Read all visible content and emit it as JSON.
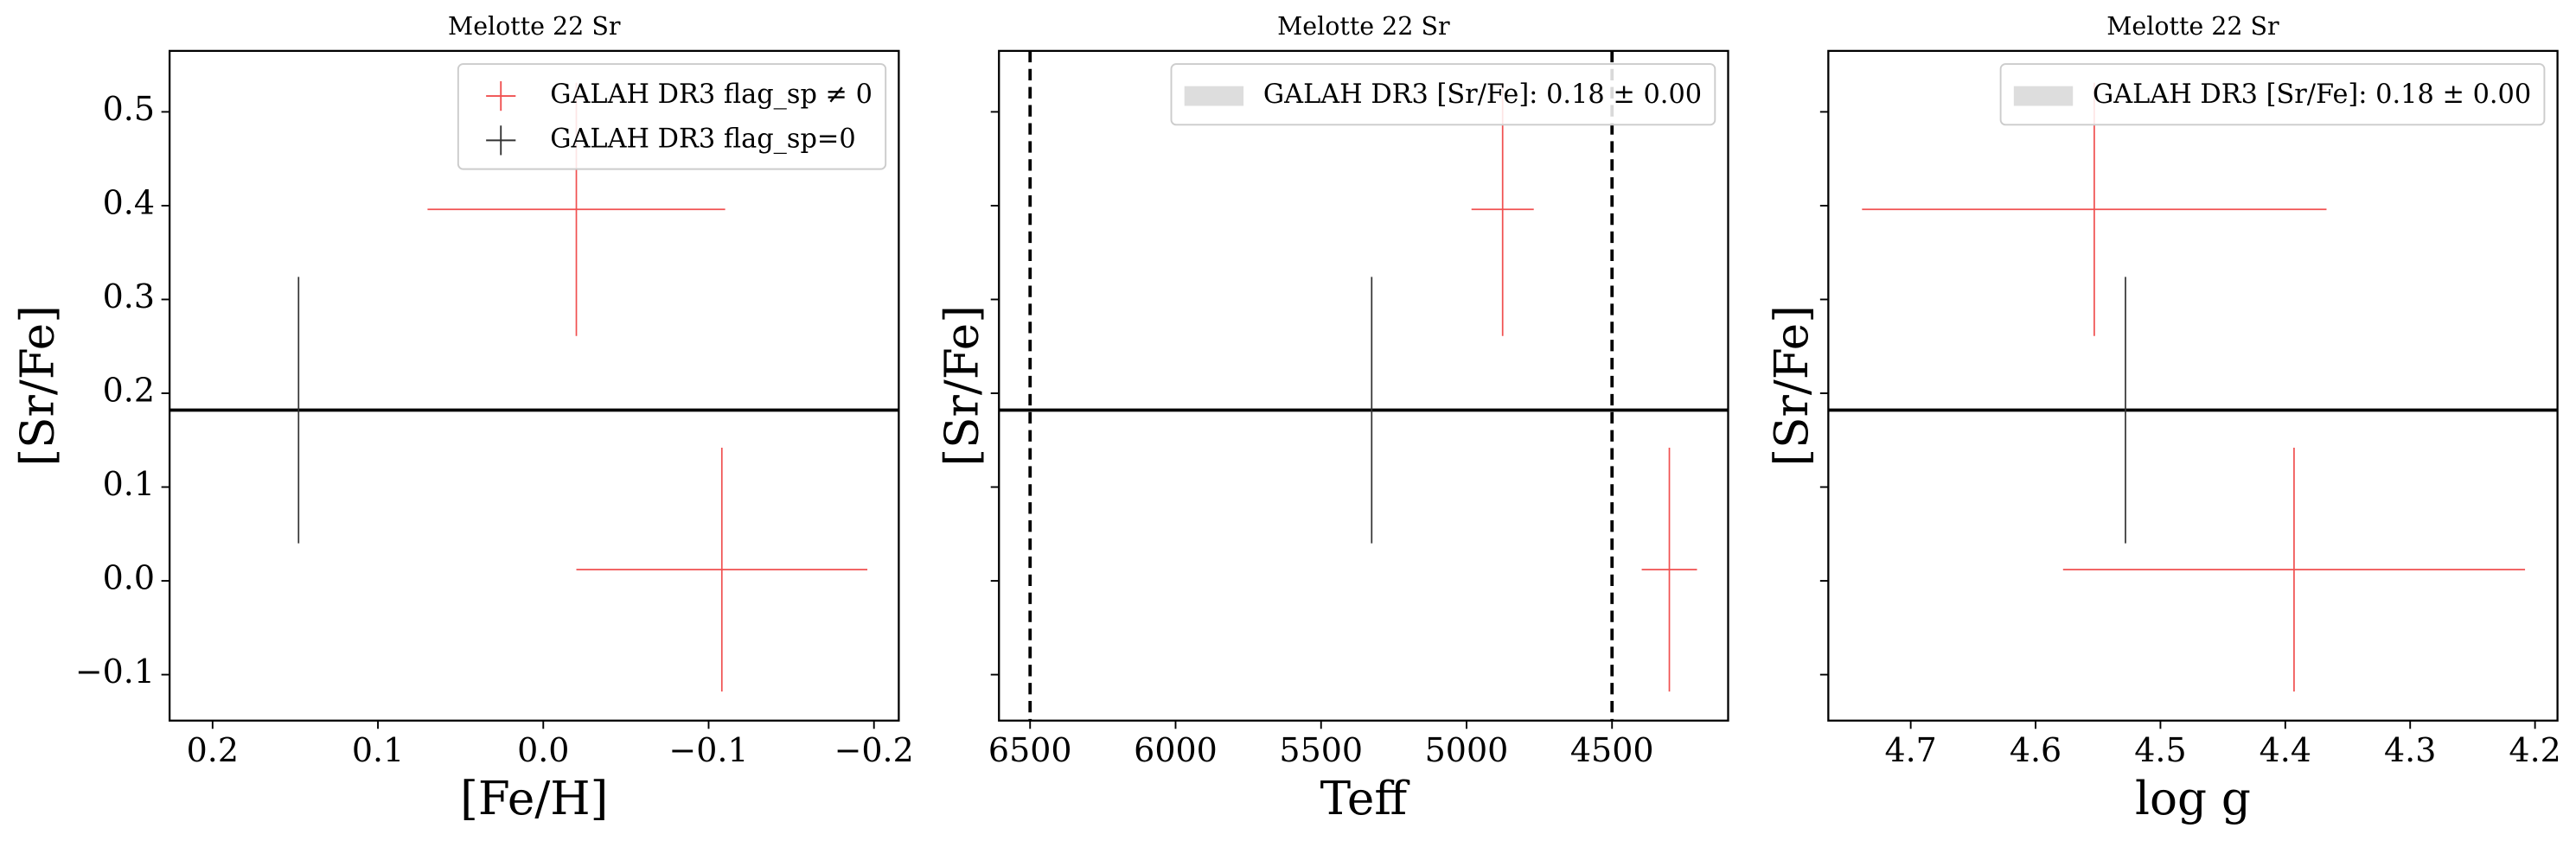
{
  "chart_data": [
    {
      "type": "errorbar",
      "title": "Melotte 22 Sr",
      "xlabel": "[Fe/H]",
      "ylabel": "[Sr/Fe]",
      "xlim": [
        0.226,
        -0.215
      ],
      "ylim": [
        -0.149,
        0.565
      ],
      "xticks": [
        0.2,
        0.1,
        {
          "value": 0,
          "label": "0.0"
        },
        {
          "value": -0.1,
          "label": "−0.1"
        },
        {
          "value": -0.2,
          "label": "−0.2"
        }
      ],
      "yticks": [
        {
          "value": -0.1,
          "label": "−0.1"
        },
        {
          "value": 0,
          "label": "0.0"
        },
        0.1,
        0.2,
        0.3,
        0.4,
        0.5
      ],
      "ytick_labels": true,
      "legend": "upper right",
      "hline": {
        "value": 0.182,
        "color": "#000000"
      },
      "series": [
        {
          "name": "GALAH DR3 flag_sp ≠ 0",
          "color": "#f05050",
          "x": [
            -0.02,
            -0.108
          ],
          "values": [
            0.396,
            0.012
          ],
          "xerr": [
            0.09,
            0.088
          ],
          "yerr": [
            0.135,
            0.13
          ]
        },
        {
          "name": "GALAH DR3 flag_sp=0",
          "color": "#333333",
          "x": [
            0.148
          ],
          "values": [
            0.182
          ],
          "yerr": [
            0.142
          ]
        }
      ]
    },
    {
      "type": "errorbar",
      "title": "Melotte 22 Sr",
      "xlabel": "Teff",
      "ylabel": "[Sr/Fe]",
      "xlim": [
        6607,
        4101
      ],
      "ylim": [
        -0.149,
        0.565
      ],
      "xticks": [
        6500,
        6000,
        5500,
        5000,
        4500
      ],
      "yticks": [
        -0.1,
        0,
        0.1,
        0.2,
        0.3,
        0.4,
        0.5
      ],
      "ytick_labels": false,
      "legend": "upper right",
      "vlines": [
        6500,
        4500
      ],
      "hline": {
        "value": 0.182,
        "color": "#000000",
        "label": "GALAH DR3 [Sr/Fe]: 0.18 ± 0.00",
        "patch_color": "#dddddd"
      },
      "series": [
        {
          "color": "#f05050",
          "x": [
            4876,
            4303
          ],
          "values": [
            0.396,
            0.012
          ],
          "xerr": [
            107,
            95
          ],
          "yerr": [
            0.135,
            0.13
          ]
        },
        {
          "color": "#333333",
          "x": [
            5326
          ],
          "values": [
            0.182
          ],
          "yerr": [
            0.142
          ]
        }
      ]
    },
    {
      "type": "errorbar",
      "title": "Melotte 22 Sr",
      "xlabel": "log g",
      "ylabel": "[Sr/Fe]",
      "xlim": [
        4.766,
        4.182
      ],
      "ylim": [
        -0.149,
        0.565
      ],
      "xticks": [
        4.7,
        4.6,
        4.5,
        4.4,
        4.3,
        4.2
      ],
      "yticks": [
        -0.1,
        0,
        0.1,
        0.2,
        0.3,
        0.4,
        0.5
      ],
      "ytick_labels": false,
      "legend": "upper right",
      "hline": {
        "value": 0.182,
        "color": "#000000",
        "label": "GALAH DR3 [Sr/Fe]: 0.18 ± 0.00",
        "patch_color": "#dddddd"
      },
      "series": [
        {
          "color": "#f05050",
          "x": [
            4.553,
            4.393
          ],
          "values": [
            0.396,
            0.012
          ],
          "xerr": [
            0.186,
            0.185
          ],
          "yerr": [
            0.135,
            0.13
          ]
        },
        {
          "color": "#333333",
          "x": [
            4.528
          ],
          "values": [
            0.182
          ],
          "yerr": [
            0.142
          ]
        }
      ]
    }
  ]
}
